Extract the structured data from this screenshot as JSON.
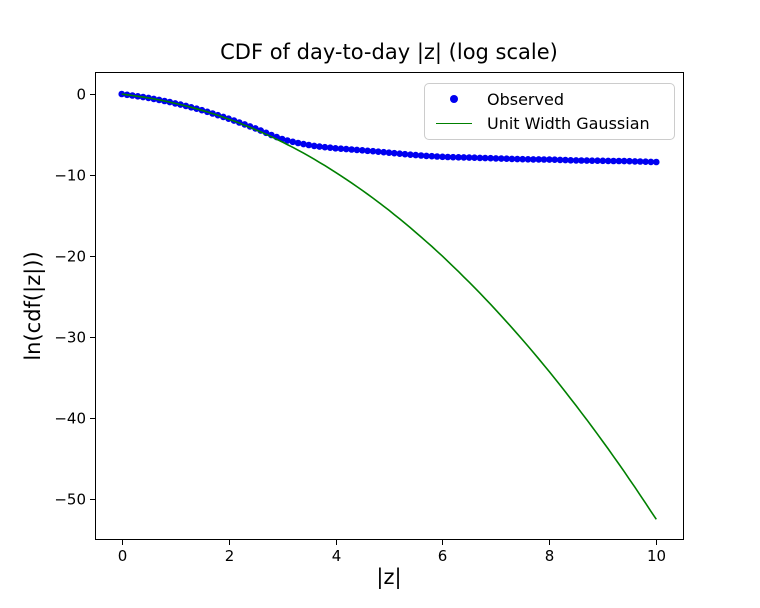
{
  "figure": {
    "title": "CDF of day-to-day |z| (log scale)"
  },
  "chart_data": {
    "type": "scatter+line",
    "title": "CDF of day-to-day |z| (log scale)",
    "xlabel": "|z|",
    "ylabel": "ln(cdf(|z|))",
    "xlim": [
      -0.5,
      10.5
    ],
    "ylim": [
      -55.1,
      2.6
    ],
    "xticks": [
      0,
      2,
      4,
      6,
      8,
      10
    ],
    "xtick_labels": [
      "0",
      "2",
      "4",
      "6",
      "8",
      "10"
    ],
    "yticks": [
      0,
      -10,
      -20,
      -30,
      -40,
      -50
    ],
    "ytick_labels": [
      "0",
      "−10",
      "−20",
      "−30",
      "−40",
      "−50"
    ],
    "grid": false,
    "legend_position": "upper right",
    "axis_color": "#000000",
    "background_color": "#ffffff",
    "x": [
      0,
      0.5,
      1,
      1.5,
      2,
      2.5,
      3,
      3.5,
      4,
      4.5,
      5,
      5.5,
      6,
      6.5,
      7,
      7.5,
      8,
      8.5,
      9,
      9.5,
      10
    ],
    "marker_render_step": 0.1,
    "series": [
      {
        "name": "Observed",
        "type": "scatter",
        "marker": "dot",
        "color": "#0000f0",
        "values": [
          0,
          -0.48,
          -1.15,
          -2.0,
          -3.05,
          -4.25,
          -5.55,
          -6.3,
          -6.7,
          -6.95,
          -7.25,
          -7.55,
          -7.75,
          -7.85,
          -7.95,
          -8.05,
          -8.1,
          -8.2,
          -8.25,
          -8.3,
          -8.4
        ]
      },
      {
        "name": "Unit Width Gaussian",
        "type": "line",
        "marker": "line",
        "color": "#008000",
        "values": [
          0,
          -0.48,
          -1.15,
          -2.01,
          -3.09,
          -4.39,
          -5.91,
          -7.67,
          -9.67,
          -11.9,
          -14.37,
          -17.09,
          -20.04,
          -23.25,
          -26.69,
          -30.38,
          -34.32,
          -38.5,
          -42.93,
          -47.61,
          -52.54
        ]
      }
    ]
  }
}
